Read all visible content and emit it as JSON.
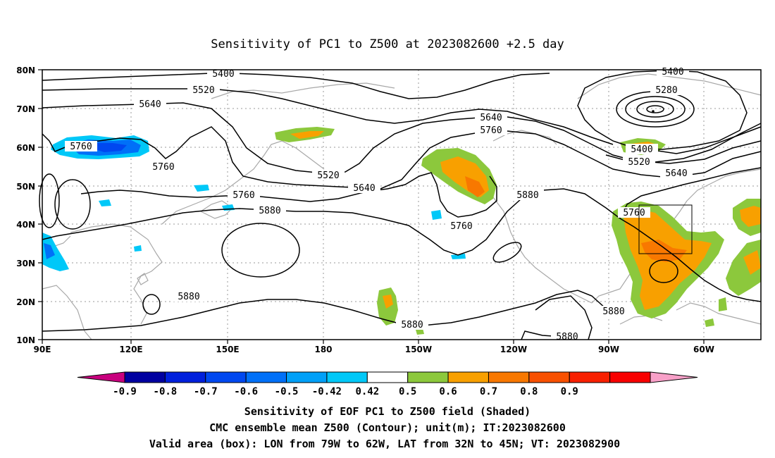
{
  "title": "Sensitivity of PC1 to Z500 at 2023082600 +2.5 day",
  "axes": {
    "lat_labels": [
      "80N",
      "70N",
      "60N",
      "50N",
      "40N",
      "30N",
      "20N",
      "10N"
    ],
    "lon_labels": [
      "90E",
      "120E",
      "150E",
      "180",
      "150W",
      "120W",
      "90W",
      "60W"
    ]
  },
  "contour_labels": [
    "5400",
    "5520",
    "5640",
    "5760",
    "5760",
    "5760",
    "5520",
    "5640",
    "5640",
    "5760",
    "5760",
    "5880",
    "5880",
    "5880",
    "5880",
    "5880",
    "5880",
    "5400",
    "5280",
    "5400",
    "5520",
    "5640",
    "5760"
  ],
  "colorbar": {
    "labels": [
      "-0.9",
      "-0.8",
      "-0.7",
      "-0.6",
      "-0.5",
      "-0.42",
      "0.42",
      "0.5",
      "0.6",
      "0.7",
      "0.8",
      "0.9"
    ],
    "colors": [
      "#c8007e",
      "#0000a0",
      "#0020dc",
      "#0048f0",
      "#0070f8",
      "#00a0f8",
      "#00c8f8",
      "#ffffff",
      "#8cc83c",
      "#f8a000",
      "#f87800",
      "#f85000",
      "#f82000",
      "#f80000",
      "#f8a0c8"
    ]
  },
  "footer": {
    "line1": "Sensitivity of EOF PC1 to Z500 field (Shaded)",
    "line2": "CMC ensemble mean Z500 (Contour); unit(m); IT:2023082600",
    "line3": "Valid area (box): LON from 79W to 62W, LAT from 32N to 45N; VT: 2023082900"
  }
}
